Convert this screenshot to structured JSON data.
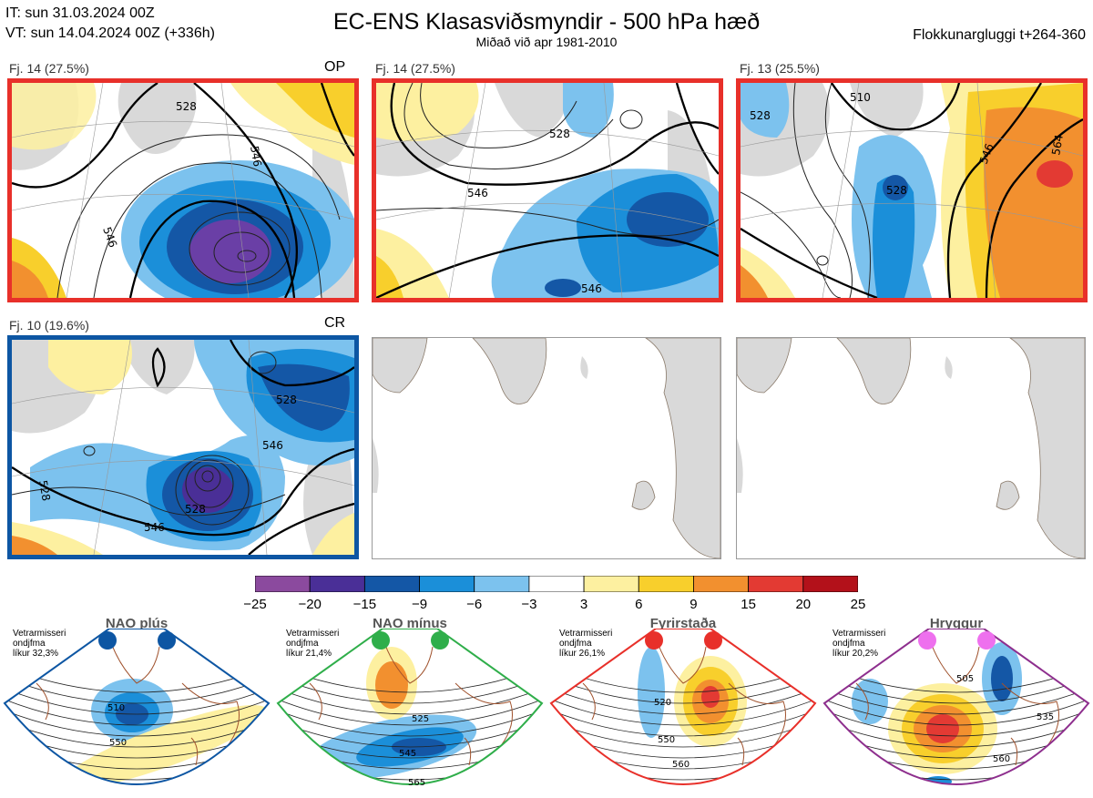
{
  "header": {
    "it_line": "IT: sun 31.03.2024 00Z",
    "vt_line": "VT: sun 14.04.2024 00Z  (+336h)",
    "title": "EC-ENS Klasasviðsmyndir - 500 hPa hæð",
    "subtitle": "Miðað við apr 1981-2010",
    "window": "Flokkunargluggi t+264-360"
  },
  "panels": [
    {
      "label": "Fj. 14 (27.5%)",
      "tag": "OP",
      "frame": "#e8302a"
    },
    {
      "label": "Fj. 14 (27.5%)",
      "tag": "",
      "frame": "#e8302a"
    },
    {
      "label": "Fj. 13 (25.5%)",
      "tag": "",
      "frame": "#e8302a"
    },
    {
      "label": "Fj. 10 (19.6%)",
      "tag": "CR",
      "frame": "#0d56a3"
    },
    {
      "label": "",
      "tag": "",
      "frame": "#9a9a9a"
    },
    {
      "label": "",
      "tag": "",
      "frame": "#9a9a9a"
    }
  ],
  "contour_labels": [
    "528",
    "546",
    "564",
    "510"
  ],
  "colorbar": {
    "ticks": [
      "−25",
      "−20",
      "−15",
      "−9",
      "−6",
      "−3",
      "3",
      "6",
      "9",
      "15",
      "20",
      "25"
    ],
    "colors": [
      "#8b4a9e",
      "#4a2f97",
      "#1457a6",
      "#1b8fd9",
      "#7cc2ee",
      "#ffffff",
      "#fdf0a0",
      "#f8cf2c",
      "#f2902f",
      "#e33a33",
      "#b3111a"
    ]
  },
  "regimes": [
    {
      "name": "NAO plús",
      "note1": "Vetrarmisseri",
      "note2": "ondjfma",
      "note3": "líkur 32,3%",
      "color": "#0d56a3",
      "dot": "#0d56a3",
      "labels": [
        "510",
        "550"
      ]
    },
    {
      "name": "NAO mínus",
      "note1": "Vetrarmisseri",
      "note2": "ondjfma",
      "note3": "líkur 21,4%",
      "color": "#2fae4a",
      "dot": "#2fae4a",
      "labels": [
        "525",
        "545",
        "565"
      ]
    },
    {
      "name": "Fyrirstaða",
      "note1": "Vetrarmisseri",
      "note2": "ondjfma",
      "note3": "líkur 26,1%",
      "color": "#e8302a",
      "dot": "#e8302a",
      "labels": [
        "520",
        "550",
        "560"
      ]
    },
    {
      "name": "Hryggur",
      "note1": "Vetrarmisseri",
      "note2": "ondjfma",
      "note3": "líkur 20,2%",
      "color": "#8e2f8e",
      "dot": "#ee70ee",
      "labels": [
        "505",
        "535",
        "560"
      ]
    }
  ]
}
